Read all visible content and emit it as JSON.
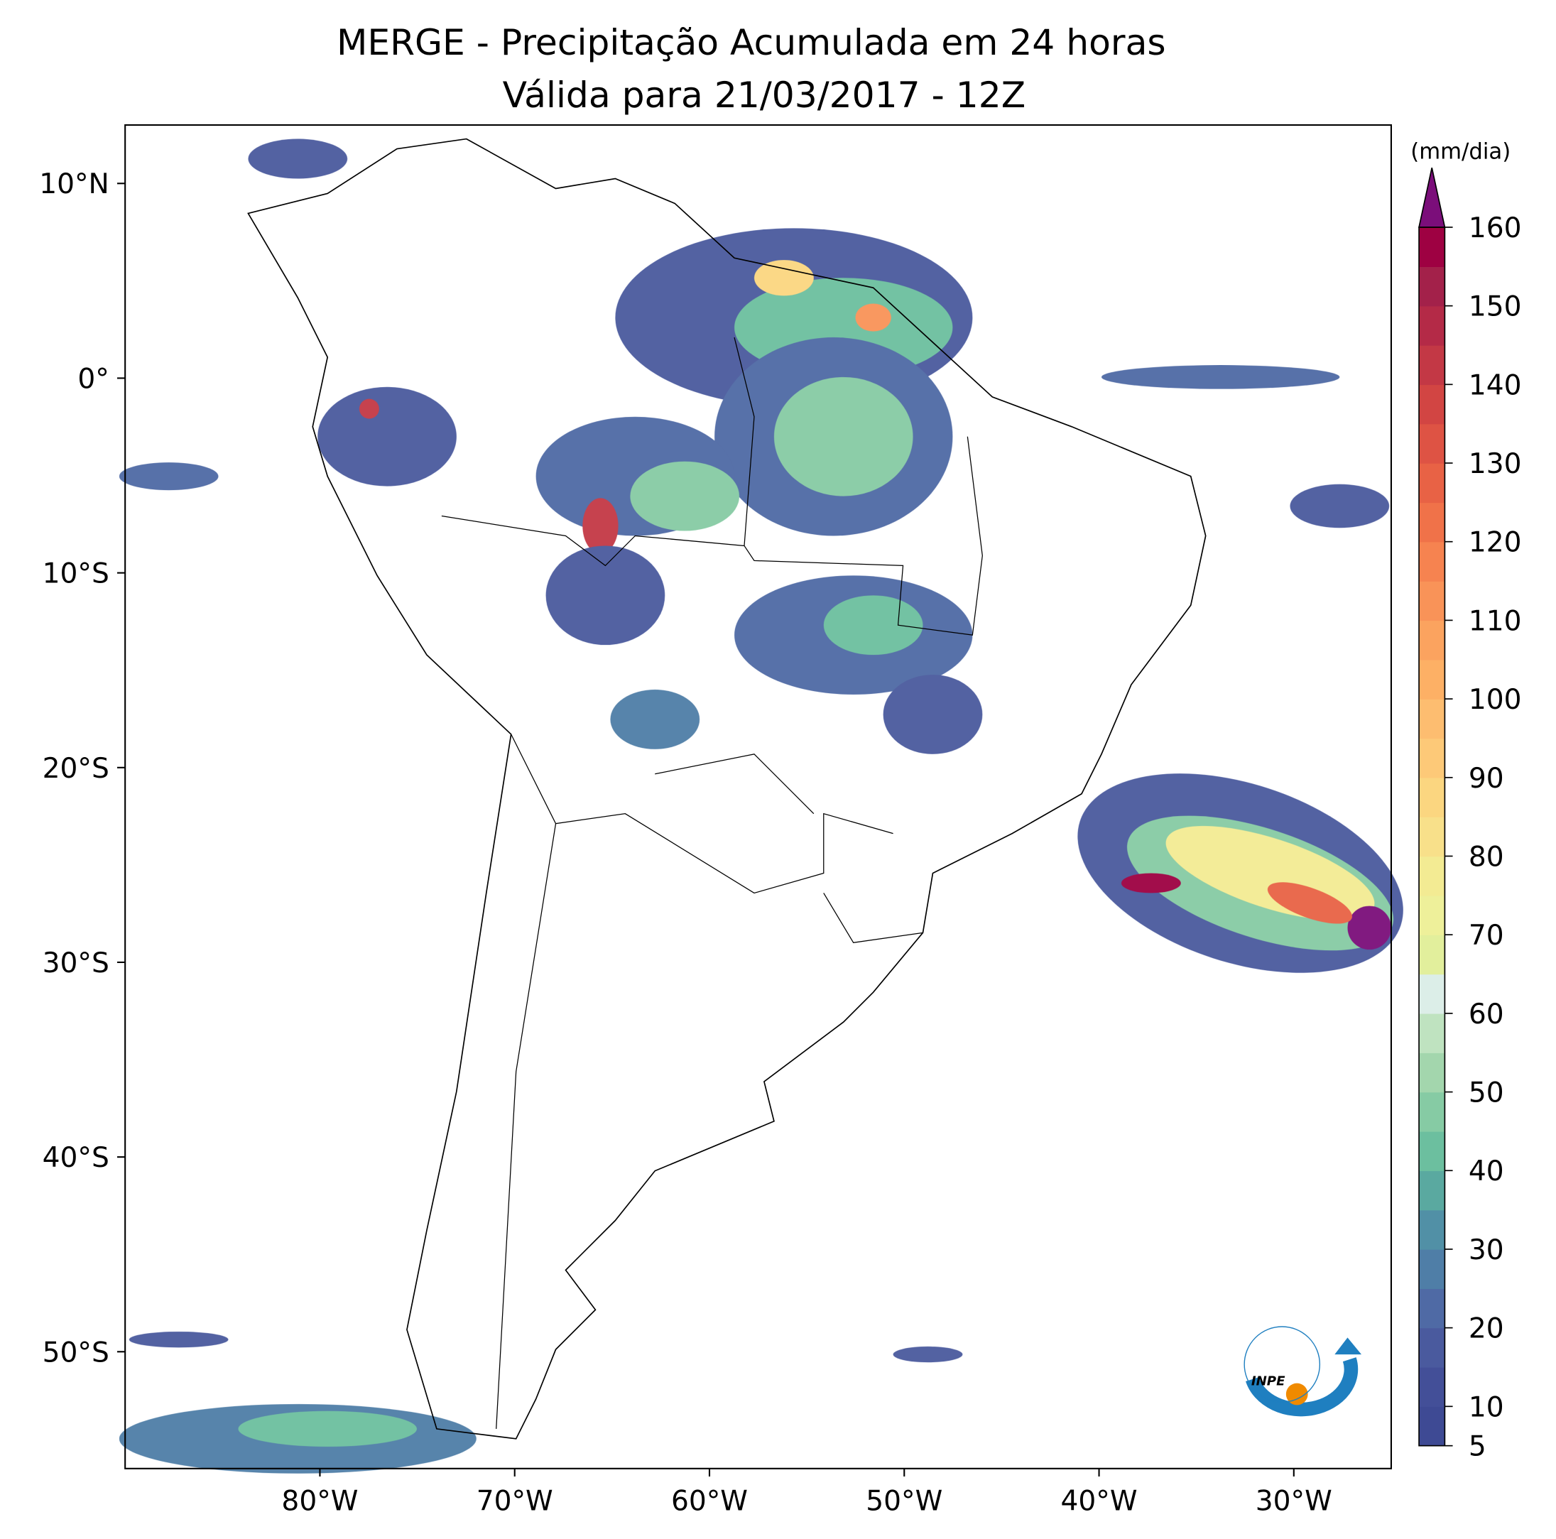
{
  "header": {
    "title": "MERGE - Precipitação Acumulada em 24 horas",
    "subtitle": "Válida para 21/03/2017 - 12Z"
  },
  "map": {
    "xlim": [
      -90,
      -25
    ],
    "ylim": [
      -56,
      13
    ],
    "xticks": [
      {
        "value": -80,
        "label": "80°W"
      },
      {
        "value": -70,
        "label": "70°W"
      },
      {
        "value": -60,
        "label": "60°W"
      },
      {
        "value": -50,
        "label": "50°W"
      },
      {
        "value": -40,
        "label": "40°W"
      },
      {
        "value": -30,
        "label": "30°W"
      }
    ],
    "yticks": [
      {
        "value": 10,
        "label": "10°N"
      },
      {
        "value": 0,
        "label": "0°"
      },
      {
        "value": -10,
        "label": "10°S"
      },
      {
        "value": -20,
        "label": "20°S"
      },
      {
        "value": -30,
        "label": "30°S"
      },
      {
        "value": -40,
        "label": "40°S"
      },
      {
        "value": -50,
        "label": "50°S"
      }
    ]
  },
  "colorbar": {
    "label": "(mm/dia)",
    "lim": [
      5,
      160
    ],
    "ticks": [
      5,
      10,
      20,
      30,
      40,
      50,
      60,
      70,
      80,
      90,
      100,
      110,
      120,
      130,
      140,
      150,
      160
    ],
    "colors": [
      "#3e4a94",
      "#434f98",
      "#4a5a9e",
      "#4f6aa5",
      "#4f7ea7",
      "#5190a6",
      "#5aa9a0",
      "#6cbf9f",
      "#86cba4",
      "#a3d6ad",
      "#bfe3c0",
      "#dceee8",
      "#e2ef9c",
      "#eef09a",
      "#f3eb93",
      "#f8e08a",
      "#fbd680",
      "#fdc978",
      "#fdbd70",
      "#fdb065",
      "#fba35f",
      "#f99358",
      "#f68350",
      "#f07249",
      "#e86245",
      "#de5344",
      "#d24543",
      "#c33845",
      "#b42a47",
      "#a3214a",
      "#9e0142"
    ],
    "extend_color": "#7b0e7a"
  },
  "logo": {
    "text": "INPE"
  }
}
